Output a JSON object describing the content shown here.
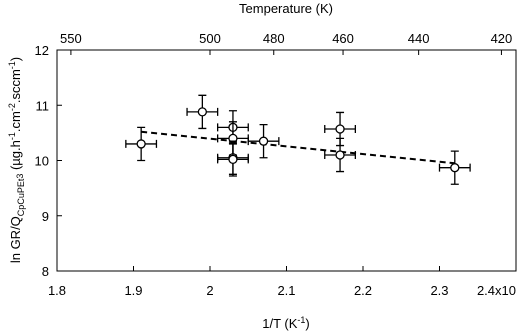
{
  "chart_data": {
    "type": "scatter",
    "xlabel_parts": [
      {
        "text": "1/T (K"
      },
      {
        "text": "-1",
        "shift": "sup"
      },
      {
        "text": ")"
      }
    ],
    "ylabel_parts": [
      {
        "text": "ln GR/Q"
      },
      {
        "text": "CpCuPEt",
        "shift": "sub"
      },
      {
        "text": "3",
        "shift": "subsub"
      },
      {
        "text": " (µg.h"
      },
      {
        "text": "-1",
        "shift": "sup"
      },
      {
        "text": ".cm"
      },
      {
        "text": "-2",
        "shift": "sup"
      },
      {
        "text": ".sccm"
      },
      {
        "text": "-1",
        "shift": "sup"
      },
      {
        "text": ")"
      }
    ],
    "x2label": "Temperature (K)",
    "xlim": [
      1.8,
      2.4
    ],
    "xticks": [
      1.8,
      1.9,
      2.0,
      2.1,
      2.2,
      2.3,
      {
        "value": 2.4,
        "label": "2.4x10"
      }
    ],
    "ylim": [
      8,
      12
    ],
    "yticks": [
      8,
      9,
      10,
      11,
      12
    ],
    "x2ticks": [
      550,
      500,
      480,
      460,
      440,
      420
    ],
    "series": [
      {
        "color": "#000000",
        "x": [
          1.91,
          1.99,
          2.03,
          2.03,
          2.03,
          2.03,
          2.07,
          2.17,
          2.17,
          2.32
        ],
        "values": [
          10.3,
          10.88,
          10.6,
          10.4,
          10.05,
          10.02,
          10.35,
          10.57,
          10.1,
          9.87
        ],
        "xerr": [
          0.02,
          0.02,
          0.02,
          0.02,
          0.02,
          0.02,
          0.02,
          0.02,
          0.02,
          0.02
        ],
        "yerr": [
          0.3,
          0.3,
          0.3,
          0.3,
          0.3,
          0.3,
          0.3,
          0.3,
          0.3,
          0.3
        ]
      }
    ],
    "fit": {
      "x": [
        1.91,
        2.32
      ],
      "values": [
        10.52,
        9.95
      ]
    }
  }
}
